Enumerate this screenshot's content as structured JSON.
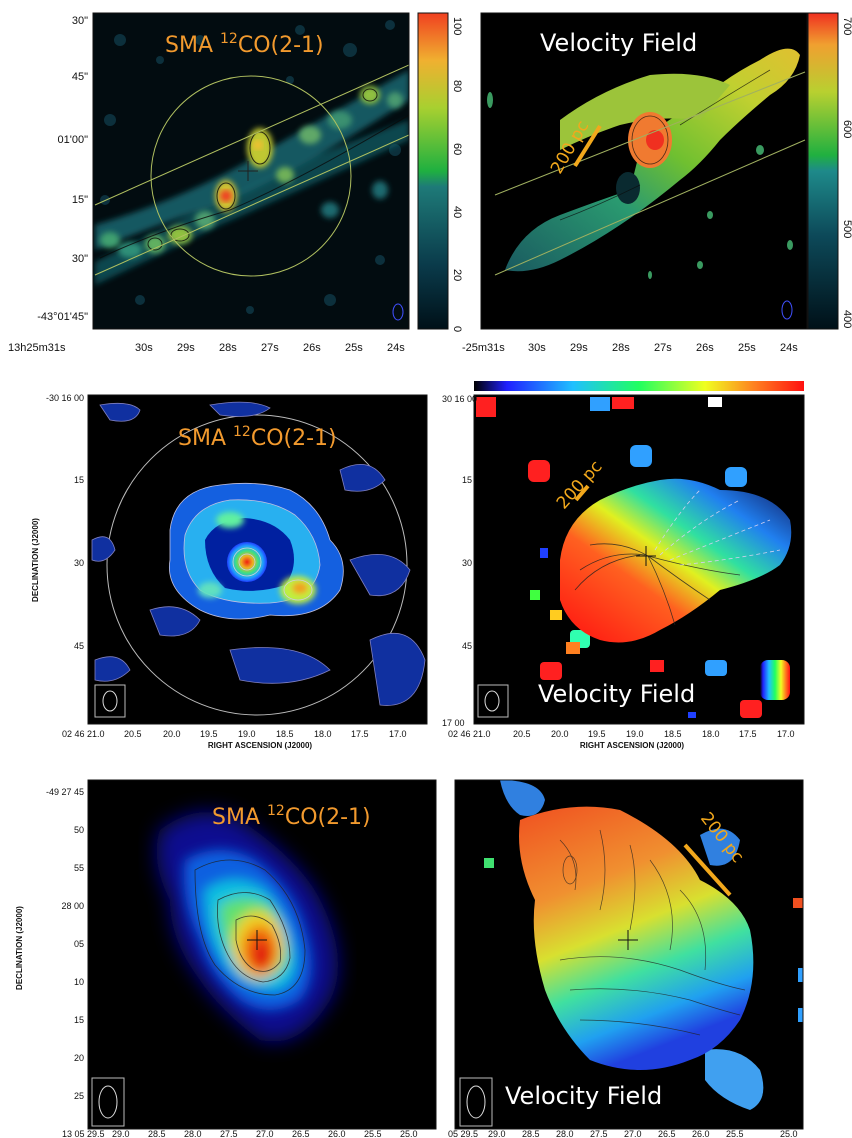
{
  "row1": {
    "left": {
      "title_prefix": "SMA ",
      "title_sup": "12",
      "title_suffix": "CO(2-1)",
      "yticks": [
        "30\"",
        "45\"",
        "01'00\"",
        "15\"",
        "30\"",
        "-43°01'45\""
      ],
      "xticks": [
        "13h25m31s",
        "30s",
        "29s",
        "28s",
        "27s",
        "26s",
        "25s",
        "24s"
      ],
      "colorbar_ticks": [
        "100",
        "80",
        "60",
        "40",
        "20",
        "0"
      ]
    },
    "right": {
      "title": "Velocity Field",
      "scale_label": "200 pc",
      "xticks": [
        "-25m31s",
        "30s",
        "29s",
        "28s",
        "27s",
        "26s",
        "25s",
        "24s"
      ],
      "colorbar_ticks": [
        "700",
        "600",
        "500",
        "400"
      ]
    }
  },
  "row2": {
    "left": {
      "title_prefix": "SMA ",
      "title_sup": "12",
      "title_suffix": "CO(2-1)",
      "yticks": [
        "-30 16 00",
        "15",
        "30",
        "45"
      ],
      "xticks": [
        "02 46 21.0",
        "20.5",
        "20.0",
        "19.5",
        "19.0",
        "18.5",
        "18.0",
        "17.5",
        "17.0"
      ],
      "ylabel": "DECLINATION (J2000)",
      "xlabel": "RIGHT ASCENSION (J2000)"
    },
    "right": {
      "title": "Velocity Field",
      "scale_label": "200 pc",
      "yticks": [
        "30 16 00",
        "15",
        "30",
        "45",
        "17 00"
      ],
      "xticks": [
        "02 46 21.0",
        "20.5",
        "20.0",
        "19.5",
        "19.0",
        "18.5",
        "18.0",
        "17.5",
        "17.0"
      ],
      "xlabel": "RIGHT ASCENSION (J2000)"
    }
  },
  "row3": {
    "left": {
      "title_prefix": "SMA ",
      "title_sup": "12",
      "title_suffix": "CO(2-1)",
      "yticks": [
        "-49 27 45",
        "50",
        "55",
        "28 00",
        "05",
        "10",
        "15",
        "20",
        "25"
      ],
      "xticks": [
        "13 05 29.5",
        "29.0",
        "28.5",
        "28.0",
        "27.5",
        "27.0",
        "26.5",
        "26.0",
        "25.5",
        "25.0"
      ],
      "ylabel": "DECLINATION (J2000)"
    },
    "right": {
      "title": "Velocity Field",
      "scale_label": "200 pc",
      "xticks": [
        "05 29.5",
        "29.0",
        "28.5",
        "28.0",
        "27.5",
        "27.0",
        "26.5",
        "26.0",
        "25.5",
        "25.0"
      ]
    }
  }
}
